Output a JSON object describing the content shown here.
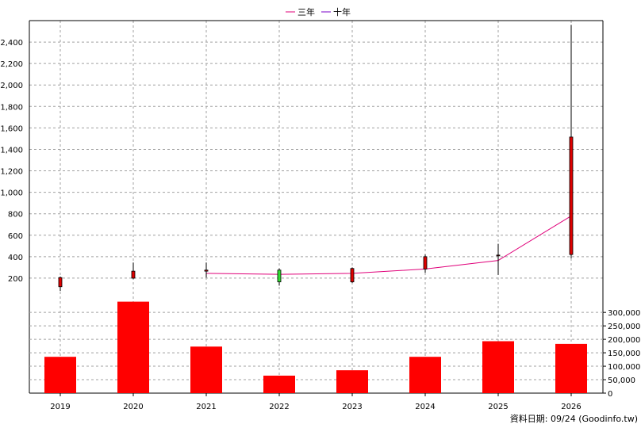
{
  "legend": {
    "items": [
      {
        "label": "三年",
        "color": "#e0007a"
      },
      {
        "label": "十年",
        "color": "#7a00c8"
      }
    ]
  },
  "footer": {
    "source_text": "資料日期: 09/24  (Goodinfo.tw)"
  },
  "chart_data": [
    {
      "type": "candlestick",
      "categories": [
        "2019",
        "2020",
        "2021",
        "2022",
        "2023",
        "2024",
        "2025",
        "2026"
      ],
      "ylim": [
        0,
        2600
      ],
      "yticks": [
        200,
        400,
        600,
        800,
        1000,
        1200,
        1400,
        1600,
        1800,
        2000,
        2200,
        2400
      ],
      "ytick_labels": [
        "200",
        "400",
        "600",
        "800",
        "1,000",
        "1,200",
        "1,400",
        "1,600",
        "1,800",
        "2,000",
        "2,200",
        "2,400"
      ],
      "grid": true,
      "legend_position": "top-center",
      "candles": [
        {
          "x": "2019",
          "open": 120,
          "close": 205,
          "high": 215,
          "low": 80,
          "direction": "up"
        },
        {
          "x": "2020",
          "open": 200,
          "close": 265,
          "high": 345,
          "low": 190,
          "direction": "up"
        },
        {
          "x": "2021",
          "open": 265,
          "close": 275,
          "high": 345,
          "low": 205,
          "direction": "up"
        },
        {
          "x": "2022",
          "open": 275,
          "close": 165,
          "high": 290,
          "low": 130,
          "direction": "down"
        },
        {
          "x": "2023",
          "open": 165,
          "close": 290,
          "high": 300,
          "low": 155,
          "direction": "up"
        },
        {
          "x": "2024",
          "open": 285,
          "close": 400,
          "high": 420,
          "low": 250,
          "direction": "up"
        },
        {
          "x": "2025",
          "open": 410,
          "close": 415,
          "high": 520,
          "low": 230,
          "direction": "up"
        },
        {
          "x": "2026",
          "open": 420,
          "close": 1515,
          "high": 2560,
          "low": 385,
          "direction": "up"
        }
      ],
      "series": [
        {
          "name": "三年",
          "color": "#e0007a",
          "x": [
            "2021",
            "2022",
            "2023",
            "2024",
            "2025",
            "2026"
          ],
          "values": [
            245,
            235,
            245,
            285,
            365,
            780
          ]
        },
        {
          "name": "十年",
          "color": "#7a00c8",
          "x": [],
          "values": []
        }
      ],
      "colors": {
        "up": "#e00000",
        "down": "#33dd33",
        "wick": "#000000"
      }
    },
    {
      "type": "bar",
      "categories": [
        "2019",
        "2020",
        "2021",
        "2022",
        "2023",
        "2024",
        "2025",
        "2026"
      ],
      "values": [
        135000,
        340000,
        173000,
        65000,
        85000,
        135000,
        193000,
        183000
      ],
      "ylim": [
        0,
        330000
      ],
      "yticks": [
        0,
        50000,
        100000,
        150000,
        200000,
        250000,
        300000
      ],
      "ytick_labels": [
        "0",
        "50,000",
        "100,000",
        "150,000",
        "200,000",
        "250,000",
        "300,000"
      ],
      "color": "#ff0000",
      "grid": true
    }
  ]
}
